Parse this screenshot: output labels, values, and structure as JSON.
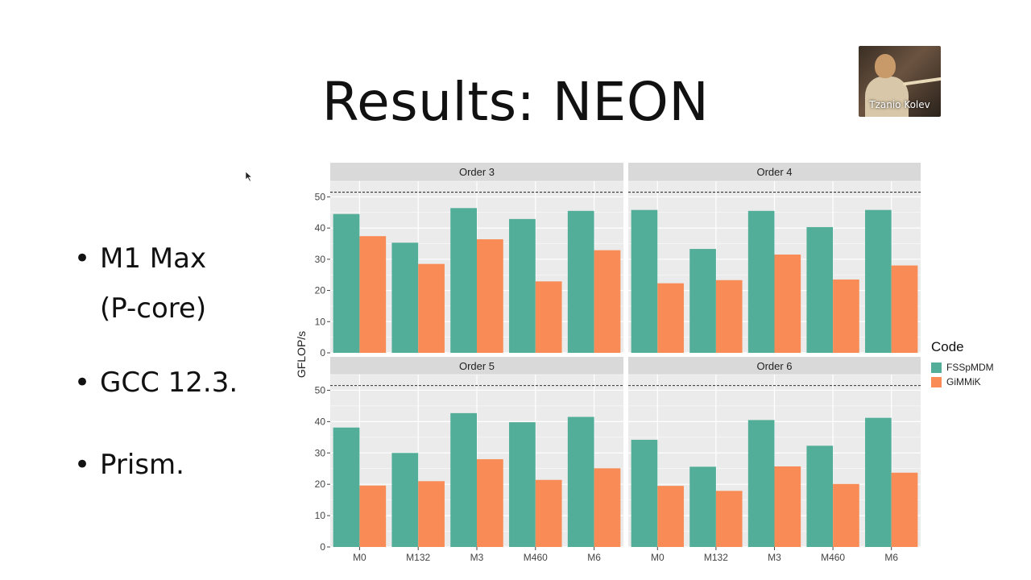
{
  "slide": {
    "title": "Results: NEON",
    "bullets": [
      [
        "M1 Max",
        "(P-core)"
      ],
      [
        "GCC 12.3."
      ],
      [
        "Prism."
      ]
    ]
  },
  "video": {
    "participant": "Tzanio Kolev"
  },
  "colors": {
    "FSSpMDM": "#52ae98",
    "GiMMiK": "#f98c56",
    "panel_bg": "#ebebeb",
    "strip_bg": "#d9d9d9",
    "grid": "#ffffff"
  },
  "chart_data": {
    "type": "bar",
    "ylabel": "GFLOP/s",
    "ylim": [
      0,
      55
    ],
    "yticks": [
      0,
      10,
      20,
      30,
      40,
      50
    ],
    "reference_line": 51.5,
    "categories": [
      "M0",
      "M132",
      "M3",
      "M460",
      "M6"
    ],
    "legend": {
      "title": "Code",
      "position": "right",
      "entries": [
        "FSSpMDM",
        "GiMMiK"
      ]
    },
    "panels": [
      {
        "title": "Order 3",
        "series": [
          {
            "name": "FSSpMDM",
            "values": [
              44.5,
              35.3,
              46.4,
              42.9,
              45.5
            ]
          },
          {
            "name": "GiMMiK",
            "values": [
              37.4,
              28.5,
              36.4,
              22.9,
              32.9
            ]
          }
        ]
      },
      {
        "title": "Order 4",
        "series": [
          {
            "name": "FSSpMDM",
            "values": [
              45.8,
              33.3,
              45.5,
              40.3,
              45.8
            ]
          },
          {
            "name": "GiMMiK",
            "values": [
              22.3,
              23.3,
              31.5,
              23.5,
              28.0
            ]
          }
        ]
      },
      {
        "title": "Order 5",
        "series": [
          {
            "name": "FSSpMDM",
            "values": [
              38.1,
              30.0,
              42.7,
              39.8,
              41.5
            ]
          },
          {
            "name": "GiMMiK",
            "values": [
              19.6,
              21.0,
              28.0,
              21.4,
              25.1
            ]
          }
        ]
      },
      {
        "title": "Order 6",
        "series": [
          {
            "name": "FSSpMDM",
            "values": [
              34.2,
              25.6,
              40.5,
              32.3,
              41.2
            ]
          },
          {
            "name": "GiMMiK",
            "values": [
              19.5,
              17.9,
              25.7,
              20.1,
              23.7
            ]
          }
        ]
      }
    ]
  }
}
